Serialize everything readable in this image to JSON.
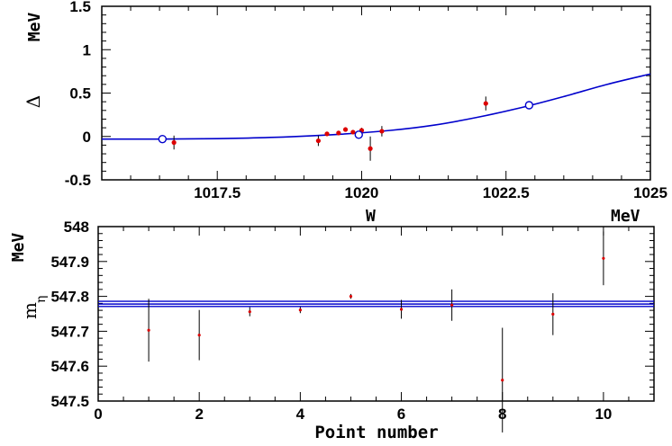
{
  "chart_data": [
    {
      "type": "scatter",
      "xlabel": "W",
      "xunit": "MeV",
      "ylabel": "Δ",
      "yunit": "MeV",
      "xlim": [
        1015.5,
        1025
      ],
      "ylim": [
        -0.5,
        1.5
      ],
      "xticks": [
        "1017.5",
        "1020",
        "1022.5",
        "1025"
      ],
      "yticks": [
        "-0.5",
        "0",
        "0.5",
        "1",
        "1.5"
      ],
      "data_points": [
        {
          "x": 1016.75,
          "y": -0.07,
          "err": 0.08
        },
        {
          "x": 1019.25,
          "y": -0.05,
          "err": 0.06
        },
        {
          "x": 1019.4,
          "y": 0.03,
          "err": 0.02
        },
        {
          "x": 1019.6,
          "y": 0.04,
          "err": 0.02
        },
        {
          "x": 1019.72,
          "y": 0.08,
          "err": 0.02
        },
        {
          "x": 1019.85,
          "y": 0.05,
          "err": 0.02
        },
        {
          "x": 1020.0,
          "y": 0.07,
          "err": 0.03
        },
        {
          "x": 1020.15,
          "y": -0.14,
          "err": 0.14
        },
        {
          "x": 1020.35,
          "y": 0.06,
          "err": 0.06
        },
        {
          "x": 1022.15,
          "y": 0.38,
          "err": 0.08
        }
      ],
      "open_points": [
        {
          "x": 1016.55,
          "y": -0.03
        },
        {
          "x": 1019.95,
          "y": 0.02
        },
        {
          "x": 1022.9,
          "y": 0.36
        }
      ],
      "curve": [
        {
          "x": 1015.5,
          "y": -0.03
        },
        {
          "x": 1016.5,
          "y": -0.03
        },
        {
          "x": 1017.5,
          "y": -0.025
        },
        {
          "x": 1018.5,
          "y": -0.01
        },
        {
          "x": 1019.5,
          "y": 0.02
        },
        {
          "x": 1020.5,
          "y": 0.07
        },
        {
          "x": 1021.25,
          "y": 0.13
        },
        {
          "x": 1022.0,
          "y": 0.22
        },
        {
          "x": 1022.75,
          "y": 0.33
        },
        {
          "x": 1023.5,
          "y": 0.46
        },
        {
          "x": 1024.25,
          "y": 0.6
        },
        {
          "x": 1025.0,
          "y": 0.72
        }
      ],
      "colors": {
        "points": "#dd0000",
        "curve": "#0000cc"
      }
    },
    {
      "type": "scatter",
      "xlabel": "Point number",
      "ylabel": "m",
      "ylabel_sub": "η",
      "yunit": "MeV",
      "xlim": [
        0,
        11
      ],
      "ylim": [
        547.5,
        548.0
      ],
      "xticks": [
        "0",
        "2",
        "4",
        "6",
        "8",
        "10"
      ],
      "yticks": [
        "547.5",
        "547.6",
        "547.7",
        "547.8",
        "547.9",
        "548"
      ],
      "data_points": [
        {
          "x": 1,
          "y": 547.703,
          "err": 0.09
        },
        {
          "x": 2,
          "y": 547.689,
          "err": 0.072
        },
        {
          "x": 3,
          "y": 547.756,
          "err": 0.013
        },
        {
          "x": 4,
          "y": 547.761,
          "err": 0.009
        },
        {
          "x": 5,
          "y": 547.8,
          "err": 0.007
        },
        {
          "x": 6,
          "y": 547.763,
          "err": 0.027
        },
        {
          "x": 7,
          "y": 547.775,
          "err": 0.045
        },
        {
          "x": 8,
          "y": 547.56,
          "err": 0.15
        },
        {
          "x": 9,
          "y": 547.749,
          "err": 0.06
        },
        {
          "x": 10,
          "y": 547.909,
          "err": 0.077
        }
      ],
      "bands": [
        547.771,
        547.778,
        547.786
      ],
      "colors": {
        "points": "#dd0000",
        "bands": "#0000cc"
      }
    }
  ]
}
